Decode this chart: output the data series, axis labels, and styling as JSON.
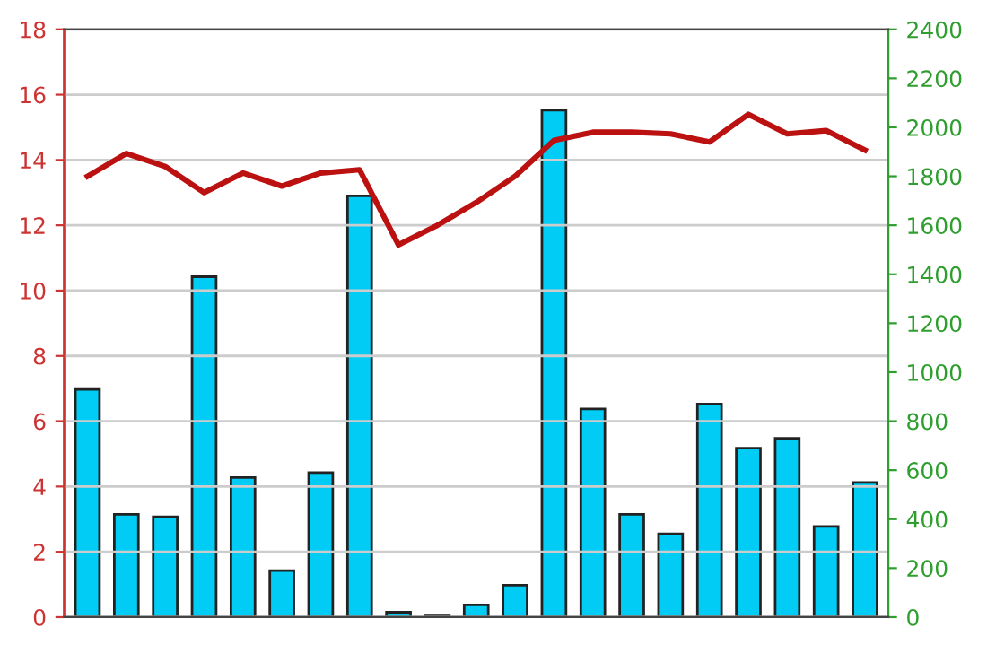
{
  "chart_data": {
    "type": "bar",
    "categories": [
      null,
      null,
      null,
      null,
      null,
      null,
      null,
      null,
      null,
      null,
      null,
      null,
      null,
      null,
      null,
      null,
      null,
      null,
      null,
      null,
      null
    ],
    "series": [
      {
        "axis": "y2",
        "color": "#00ccf5",
        "values": [
          930,
          420,
          410,
          1390,
          570,
          190,
          590,
          1720,
          20,
          5,
          50,
          130,
          2070,
          850,
          420,
          340,
          870,
          690,
          730,
          370,
          550
        ]
      },
      {
        "type": "line",
        "axis": "y",
        "color": "#bb1111",
        "values": [
          13.5,
          14.2,
          13.8,
          13.0,
          13.6,
          13.2,
          13.6,
          13.7,
          11.4,
          12.0,
          12.7,
          13.5,
          14.6,
          14.85,
          14.85,
          14.8,
          14.55,
          15.4,
          14.8,
          14.9,
          14.3
        ]
      }
    ],
    "ylim": [
      0,
      18
    ],
    "yticks": [
      0,
      2,
      4,
      6,
      8,
      10,
      12,
      14,
      16,
      18
    ],
    "y2lim": [
      0,
      2400
    ],
    "y2ticks": [
      0,
      200,
      400,
      600,
      800,
      1000,
      1200,
      1400,
      1600,
      1800,
      2000,
      2200,
      2400
    ],
    "grid": "y",
    "marker": "none",
    "line_style": "solid"
  }
}
